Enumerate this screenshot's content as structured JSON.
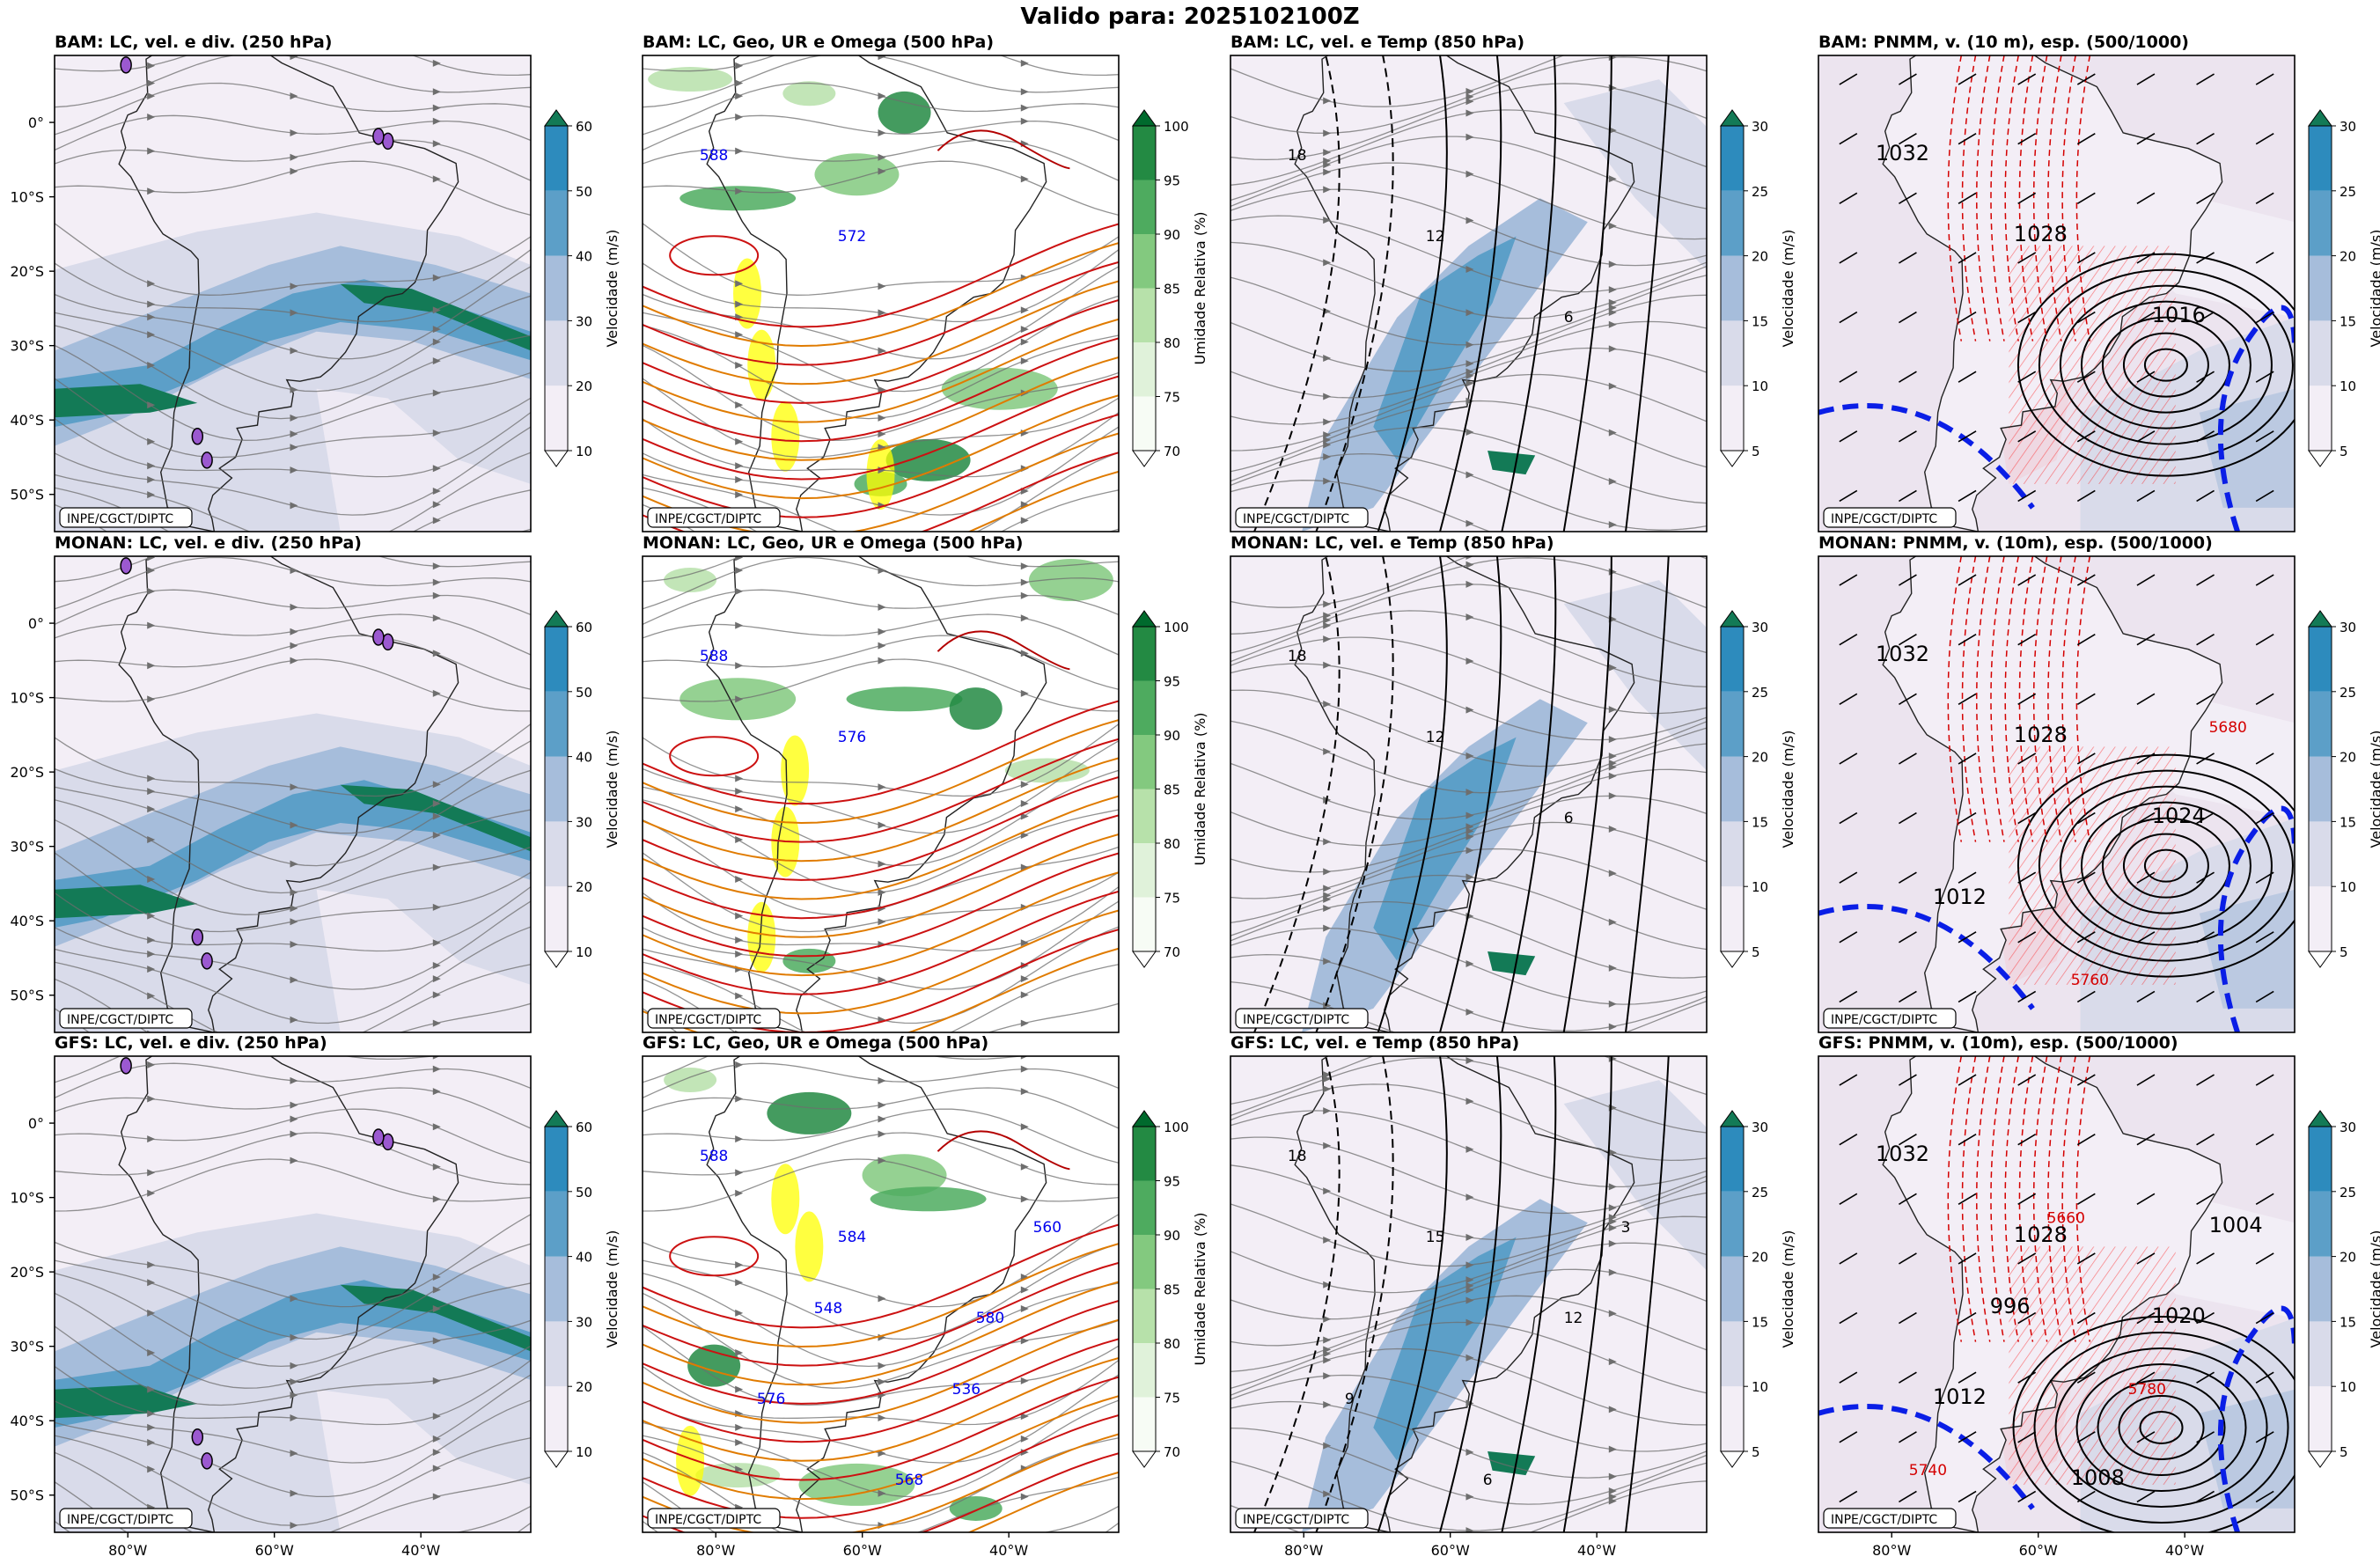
{
  "title": "Valido para: 2025102100Z",
  "credit": "INPE/CGCT/DIPTC",
  "lat_ticks": [
    "0°",
    "10°S",
    "20°S",
    "30°S",
    "40°S",
    "50°S"
  ],
  "lon_ticks": [
    "80°W",
    "60°W",
    "40°W"
  ],
  "columns": [
    {
      "cbar_label": "Velocidade (m/s)",
      "cbar_ticks": [
        "10",
        "20",
        "30",
        "40",
        "50",
        "60"
      ],
      "cbar_colors": [
        "#f3eef6",
        "#d9dbea",
        "#a6bddb",
        "#5c9fc8",
        "#2d8bbd",
        "#137a56"
      ]
    },
    {
      "cbar_label": "Umidade Relativa (%)",
      "cbar_ticks": [
        "70",
        "75",
        "80",
        "85",
        "90",
        "95",
        "100"
      ],
      "cbar_colors": [
        "#f7fcf5",
        "#e0f2da",
        "#b7e1aa",
        "#83c97f",
        "#4eab5f",
        "#238a43",
        "#006a2d"
      ]
    },
    {
      "cbar_label": "Velocidade (m/s)",
      "cbar_ticks": [
        "5",
        "10",
        "15",
        "20",
        "25",
        "30"
      ],
      "cbar_colors": [
        "#f3eef6",
        "#d9dbea",
        "#a6bddb",
        "#5c9fc8",
        "#2d8bbd",
        "#137a56"
      ]
    },
    {
      "cbar_label": "Velocidade (m/s)",
      "cbar_ticks": [
        "5",
        "10",
        "15",
        "20",
        "25",
        "30"
      ],
      "cbar_colors": [
        "#f3eef6",
        "#d9dbea",
        "#a6bddb",
        "#5c9fc8",
        "#2d8bbd",
        "#137a56"
      ]
    }
  ],
  "chart_data": [
    {
      "type": "map",
      "title": "BAM: LC, vel. e div. (250 hPa)",
      "field": "wind speed (m/s)",
      "levels": [
        10,
        20,
        30,
        40,
        50,
        60
      ]
    },
    {
      "type": "map",
      "title": "BAM: LC, Geo, UR e Omega (500 hPa)",
      "field": "relative humidity (%)",
      "levels": [
        70,
        75,
        80,
        85,
        90,
        95,
        100
      ],
      "contour_labels": [
        "588",
        "572"
      ]
    },
    {
      "type": "map",
      "title": "BAM: LC, vel. e Temp (850 hPa)",
      "field": "wind speed (m/s)",
      "levels": [
        5,
        10,
        15,
        20,
        25,
        30
      ],
      "contour_labels": [
        "18",
        "12",
        "6"
      ]
    },
    {
      "type": "map",
      "title": "BAM: PNMM, v. (10 m), esp. (500/1000)",
      "field": "wind speed (m/s)",
      "levels": [
        5,
        10,
        15,
        20,
        25,
        30
      ],
      "contour_labels": [
        "1032",
        "1028",
        "1016"
      ]
    },
    {
      "type": "map",
      "title": "MONAN: LC, vel. e div. (250 hPa)",
      "field": "wind speed (m/s)",
      "levels": [
        10,
        20,
        30,
        40,
        50,
        60
      ]
    },
    {
      "type": "map",
      "title": "MONAN: LC, Geo, UR e Omega (500 hPa)",
      "field": "relative humidity (%)",
      "levels": [
        70,
        75,
        80,
        85,
        90,
        95,
        100
      ],
      "contour_labels": [
        "588",
        "576"
      ]
    },
    {
      "type": "map",
      "title": "MONAN: LC, vel. e Temp (850 hPa)",
      "field": "wind speed (m/s)",
      "levels": [
        5,
        10,
        15,
        20,
        25,
        30
      ],
      "contour_labels": [
        "18",
        "12",
        "6"
      ]
    },
    {
      "type": "map",
      "title": "MONAN: PNMM, v. (10m), esp. (500/1000)",
      "field": "wind speed (m/s)",
      "levels": [
        5,
        10,
        15,
        20,
        25,
        30
      ],
      "contour_labels": [
        "1032",
        "1028",
        "1024",
        "1012",
        "5760",
        "5680"
      ]
    },
    {
      "type": "map",
      "title": "GFS: LC, vel. e div. (250 hPa)",
      "field": "wind speed (m/s)",
      "levels": [
        10,
        20,
        30,
        40,
        50,
        60
      ]
    },
    {
      "type": "map",
      "title": "GFS: LC, Geo, UR e Omega (500 hPa)",
      "field": "relative humidity (%)",
      "levels": [
        70,
        75,
        80,
        85,
        90,
        95,
        100
      ],
      "contour_labels": [
        "588",
        "584",
        "580",
        "576",
        "568",
        "560",
        "548",
        "536"
      ]
    },
    {
      "type": "map",
      "title": "GFS: LC, vel. e Temp (850 hPa)",
      "field": "wind speed (m/s)",
      "levels": [
        5,
        10,
        15,
        20,
        25,
        30
      ],
      "contour_labels": [
        "18",
        "15",
        "12",
        "9",
        "6",
        "3"
      ]
    },
    {
      "type": "map",
      "title": "GFS: PNMM, v. (10m), esp. (500/1000)",
      "field": "wind speed (m/s)",
      "levels": [
        5,
        10,
        15,
        20,
        25,
        30
      ],
      "contour_labels": [
        "1032",
        "1028",
        "1020",
        "1012",
        "1008",
        "1004",
        "996",
        "5780",
        "5740",
        "5660"
      ]
    }
  ]
}
